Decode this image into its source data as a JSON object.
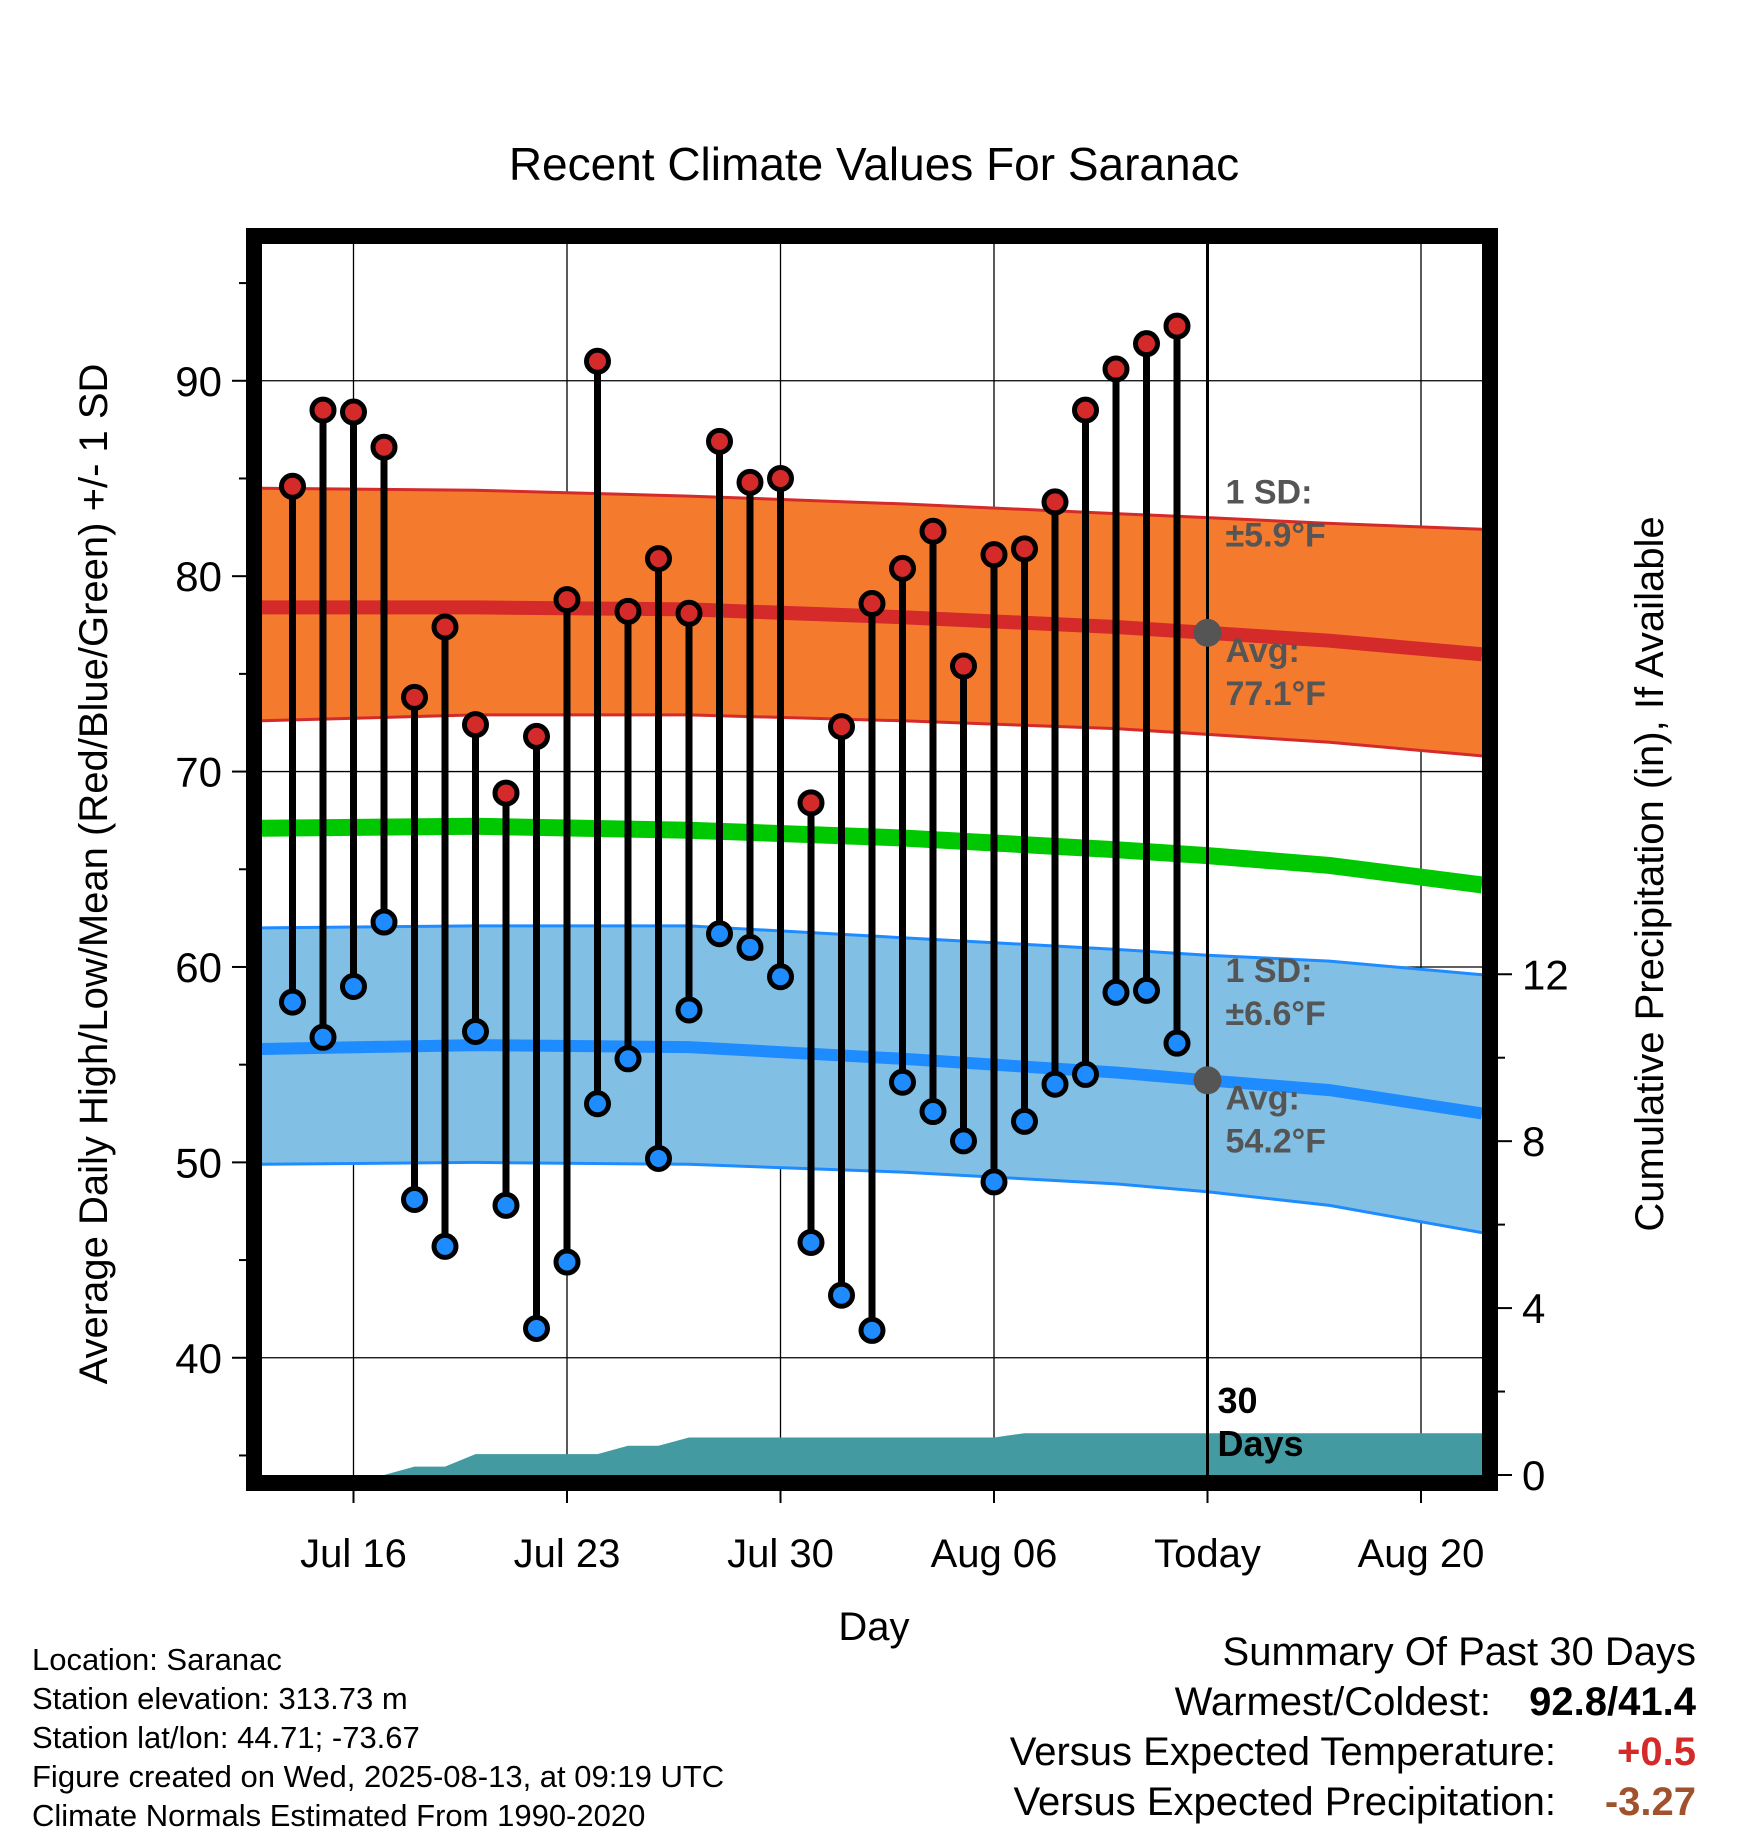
{
  "chart_data": {
    "type": "line",
    "title": "Recent Climate Values For Saranac",
    "xlabel": "Day",
    "ylabel": "Average Daily High/Low/Mean (Red/Blue/Green) +/- 1 SD",
    "y2label": "Cumulative Precipitation (in), If Available",
    "ylim": [
      34,
      97
    ],
    "y2lim": [
      0,
      29.5
    ],
    "xlim": [
      "2025-07-13",
      "2025-08-22"
    ],
    "yticks": [
      40,
      50,
      60,
      70,
      80,
      90
    ],
    "y2ticks": [
      0,
      4,
      8,
      12
    ],
    "xticks": [
      {
        "date": "2025-07-16",
        "label": "Jul 16"
      },
      {
        "date": "2025-07-23",
        "label": "Jul 23"
      },
      {
        "date": "2025-07-30",
        "label": "Jul 30"
      },
      {
        "date": "2025-08-06",
        "label": "Aug 06"
      },
      {
        "date": "2025-08-13",
        "label": "Today"
      },
      {
        "date": "2025-08-20",
        "label": "Aug 20"
      }
    ],
    "grid": true,
    "today": "2025-08-13",
    "window_label": "30 Days",
    "observed": {
      "dates": [
        "2025-07-14",
        "2025-07-15",
        "2025-07-16",
        "2025-07-17",
        "2025-07-18",
        "2025-07-19",
        "2025-07-20",
        "2025-07-21",
        "2025-07-22",
        "2025-07-23",
        "2025-07-24",
        "2025-07-25",
        "2025-07-26",
        "2025-07-27",
        "2025-07-28",
        "2025-07-29",
        "2025-07-30",
        "2025-07-31",
        "2025-08-01",
        "2025-08-02",
        "2025-08-03",
        "2025-08-04",
        "2025-08-05",
        "2025-08-06",
        "2025-08-07",
        "2025-08-08",
        "2025-08-09",
        "2025-08-10",
        "2025-08-11",
        "2025-08-12"
      ],
      "highs": [
        84.6,
        88.5,
        88.4,
        86.6,
        73.8,
        77.4,
        72.4,
        68.9,
        71.8,
        78.8,
        91.0,
        78.2,
        80.9,
        78.1,
        86.9,
        84.8,
        85.0,
        68.4,
        72.3,
        78.6,
        80.4,
        82.3,
        75.4,
        81.1,
        81.4,
        83.8,
        88.5,
        90.6,
        91.9,
        92.8
      ],
      "lows": [
        58.2,
        56.4,
        59.0,
        62.3,
        48.1,
        45.7,
        56.7,
        47.8,
        41.5,
        44.9,
        53.0,
        55.3,
        50.2,
        57.8,
        61.7,
        61.0,
        59.5,
        45.9,
        43.2,
        41.4,
        54.1,
        52.6,
        51.1,
        49.0,
        52.1,
        54.0,
        54.5,
        58.7,
        58.8,
        56.1
      ]
    },
    "normal_high": {
      "dates": [
        "2025-07-13",
        "2025-07-20",
        "2025-07-27",
        "2025-08-03",
        "2025-08-10",
        "2025-08-13",
        "2025-08-17",
        "2025-08-22"
      ],
      "avg": [
        78.4,
        78.4,
        78.3,
        77.9,
        77.4,
        77.1,
        76.7,
        76.0
      ],
      "sd_upper": [
        84.5,
        84.4,
        84.1,
        83.7,
        83.2,
        83.0,
        82.7,
        82.4
      ],
      "sd_lower": [
        72.6,
        72.9,
        72.9,
        72.6,
        72.2,
        71.9,
        71.5,
        70.8
      ]
    },
    "normal_mean": {
      "dates": [
        "2025-07-13",
        "2025-07-20",
        "2025-07-27",
        "2025-08-03",
        "2025-08-10",
        "2025-08-13",
        "2025-08-17",
        "2025-08-22"
      ],
      "avg": [
        67.1,
        67.2,
        67.0,
        66.6,
        66.0,
        65.7,
        65.2,
        64.2
      ]
    },
    "normal_low": {
      "dates": [
        "2025-07-13",
        "2025-07-20",
        "2025-07-27",
        "2025-08-03",
        "2025-08-10",
        "2025-08-13",
        "2025-08-17",
        "2025-08-22"
      ],
      "avg": [
        55.8,
        56.0,
        55.9,
        55.3,
        54.6,
        54.2,
        53.7,
        52.5
      ],
      "sd_upper": [
        62.0,
        62.1,
        62.1,
        61.5,
        60.9,
        60.6,
        60.3,
        59.6
      ],
      "sd_lower": [
        49.9,
        50.0,
        49.9,
        49.5,
        48.9,
        48.5,
        47.8,
        46.4
      ]
    },
    "precip_cumulative": {
      "dates": [
        "2025-07-13",
        "2025-07-17",
        "2025-07-18",
        "2025-07-19",
        "2025-07-20",
        "2025-07-24",
        "2025-07-25",
        "2025-07-26",
        "2025-07-27",
        "2025-07-28",
        "2025-08-06",
        "2025-08-07",
        "2025-08-22"
      ],
      "values": [
        0.0,
        0.0,
        0.2,
        0.2,
        0.5,
        0.5,
        0.7,
        0.7,
        0.9,
        0.9,
        0.9,
        1.0,
        1.0
      ]
    },
    "annotations": {
      "high_sd_label": "1 SD:",
      "high_sd_value": "±5.9°F",
      "high_avg_label": "Avg:",
      "high_avg_value": "77.1°F",
      "low_sd_label": "1 SD:",
      "low_sd_value": "±6.6°F",
      "low_avg_label": "Avg:",
      "low_avg_value": "54.2°F"
    },
    "colors": {
      "high_band": "#f47a2e",
      "high_band_edge": "#d42a2a",
      "high_avg": "#d42a2a",
      "mean_line": "#00c800",
      "low_band": "#82bfe5",
      "low_band_edge": "#1e8cff",
      "low_avg": "#1e8cff",
      "high_dot": "#d42a2a",
      "low_dot": "#1e8cff",
      "precip": "#449aa1",
      "annotation_text": "#555555",
      "today_dot": "#555555"
    }
  },
  "info": {
    "location": "Location: Saranac",
    "elevation": "Station elevation: 313.73 m",
    "latlon": "Station lat/lon: 44.71; -73.67",
    "created": "Figure created on Wed, 2025-08-13, at 09:19 UTC",
    "normals": "Climate Normals Estimated From 1990-2020"
  },
  "summary": {
    "heading": "Summary Of Past 30 Days",
    "warmest_label": "Warmest/Coldest:",
    "warmest_value": "92.8/41.4",
    "temp_label": "Versus Expected Temperature:",
    "temp_value": "+0.5",
    "temp_color": "#d42a2a",
    "precip_label": "Versus Expected Precipitation:",
    "precip_value": "-3.27",
    "precip_color": "#a0522d"
  }
}
